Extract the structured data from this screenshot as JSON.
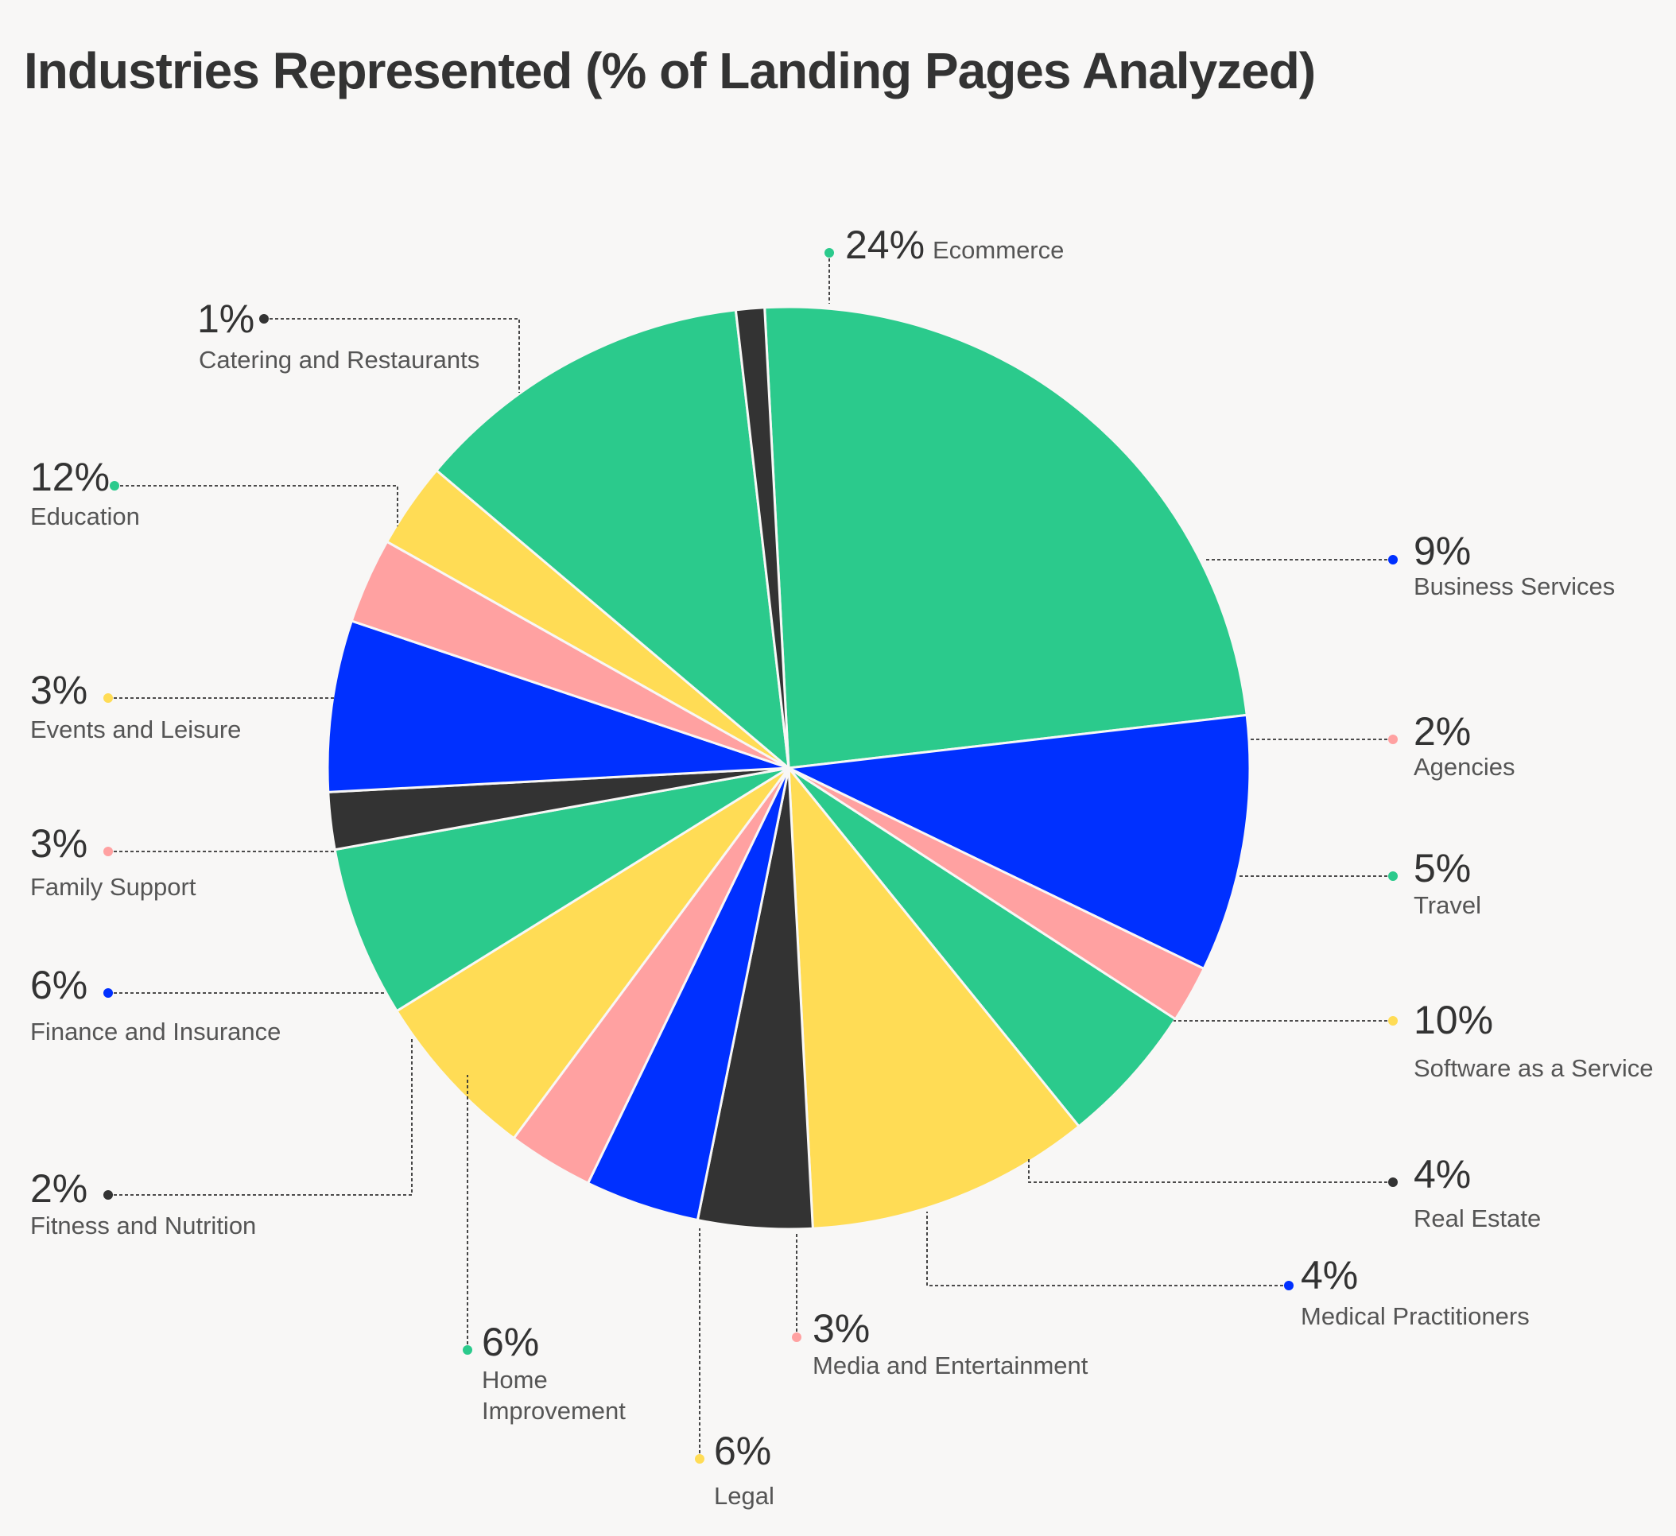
{
  "chart_data": {
    "type": "pie",
    "title": "Industries Represented (% of Landing Pages Analyzed)",
    "unit": "%",
    "slices": [
      {
        "label": "Ecommerce",
        "value": 24,
        "display": "24%",
        "color": "#2bca8c"
      },
      {
        "label": "Business Services",
        "value": 9,
        "display": "9%",
        "color": "#0030ff"
      },
      {
        "label": "Agencies",
        "value": 2,
        "display": "2%",
        "color": "#ffa1a1"
      },
      {
        "label": "Travel",
        "value": 5,
        "display": "5%",
        "color": "#2bca8c"
      },
      {
        "label": "Software as a Service",
        "value": 10,
        "display": "10%",
        "color": "#ffdc55"
      },
      {
        "label": "Real Estate",
        "value": 4,
        "display": "4%",
        "color": "#333333"
      },
      {
        "label": "Medical Practitioners",
        "value": 4,
        "display": "4%",
        "color": "#0030ff"
      },
      {
        "label": "Media and Entertainment",
        "value": 3,
        "display": "3%",
        "color": "#ffa1a1"
      },
      {
        "label": "Legal",
        "value": 6,
        "display": "6%",
        "color": "#ffdc55"
      },
      {
        "label": "Home Improvement",
        "value": 6,
        "display": "6%",
        "color": "#2bca8c"
      },
      {
        "label": "Fitness and Nutrition",
        "value": 2,
        "display": "2%",
        "color": "#333333"
      },
      {
        "label": "Finance and Insurance",
        "value": 6,
        "display": "6%",
        "color": "#0030ff"
      },
      {
        "label": "Family Support",
        "value": 3,
        "display": "3%",
        "color": "#ffa1a1"
      },
      {
        "label": "Events and Leisure",
        "value": 3,
        "display": "3%",
        "color": "#ffdc55"
      },
      {
        "label": "Education",
        "value": 12,
        "display": "12%",
        "color": "#2bca8c"
      },
      {
        "label": "Catering and Restaurants",
        "value": 1,
        "display": "1%",
        "color": "#333333"
      }
    ]
  }
}
